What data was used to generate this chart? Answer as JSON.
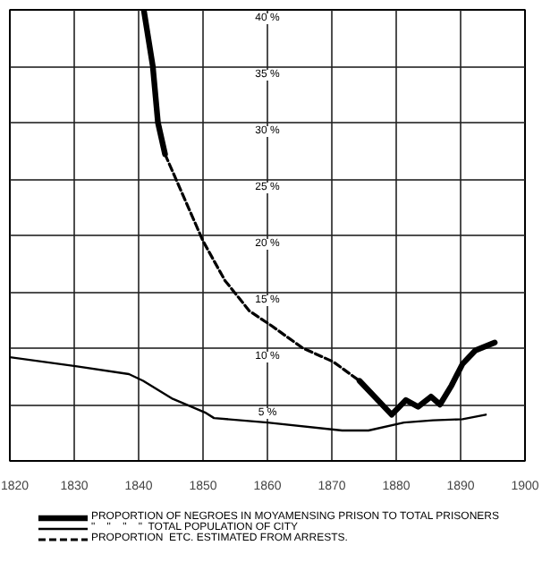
{
  "chart_data": {
    "type": "line",
    "xlim": [
      1820,
      1900
    ],
    "xticks": [
      1820,
      1830,
      1840,
      1850,
      1860,
      1870,
      1880,
      1890,
      1900
    ],
    "ylim": [
      0,
      40
    ],
    "yticks": [
      {
        "value": 0,
        "label": null
      },
      {
        "value": 5,
        "label": "5 %"
      },
      {
        "value": 10,
        "label": "10 %"
      },
      {
        "value": 15,
        "label": "15 %"
      },
      {
        "value": 20,
        "label": "20 %"
      },
      {
        "value": 25,
        "label": "25 %"
      },
      {
        "value": 30,
        "label": "30 %"
      },
      {
        "value": 35,
        "label": "35 %"
      },
      {
        "value": 40,
        "label": "40 %"
      }
    ],
    "grid": true,
    "legend": "bottom",
    "marker": "none",
    "series": [
      {
        "name": "PROPORTION OF NEGROES IN MOYAMENSING PRISON TO TOTAL PRISONERS",
        "color": "#000000",
        "line_style": "solid",
        "x": [
          1840.8,
          1842.2,
          1843,
          1844.1,
          null,
          1874.3,
          1879.3,
          1881.5,
          1883.4,
          1885.4,
          1886.8,
          1888.6,
          1890.3,
          1892.3,
          1895.3
        ],
        "values": [
          40,
          35,
          30,
          27.2,
          null,
          7.1,
          4.1,
          5.4,
          4.8,
          5.7,
          5.0,
          6.7,
          8.6,
          9.8,
          10.5
        ]
      },
      {
        "name": "\"    \"    \"    \"  TOTAL POPULATION OF CITY",
        "color": "#000000",
        "line_style": "solid",
        "x": [
          1820,
          1830.2,
          1838.5,
          1840.7,
          1845.3,
          1850.3,
          1851.7,
          1860,
          1871.6,
          1875.7,
          1881.2,
          1885.7,
          1890.3,
          1893.9
        ],
        "values": [
          9.2,
          8.4,
          7.7,
          7.1,
          5.5,
          4.3,
          3.8,
          3.4,
          2.7,
          2.7,
          3.4,
          3.6,
          3.7,
          4.1
        ]
      },
      {
        "name": "PROPORTION  ETC. ESTIMATED FROM ARRESTS.",
        "color": "#000000",
        "line_style": "dashed",
        "x": [
          1844.1,
          1850,
          1853.4,
          1857.2,
          1860.6,
          1865.5,
          1870.2,
          1874.3
        ],
        "values": [
          27.2,
          19.5,
          16,
          13.3,
          12,
          10,
          8.8,
          7.1
        ]
      }
    ]
  }
}
